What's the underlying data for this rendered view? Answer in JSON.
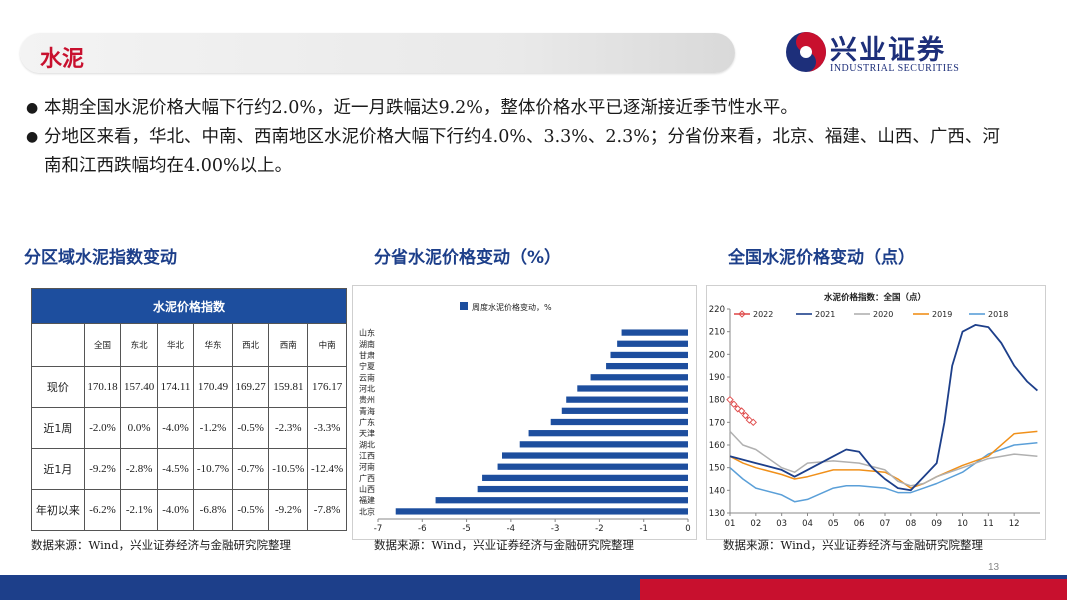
{
  "header": {
    "title": "水泥",
    "logo_cn": "兴业证券",
    "logo_en": "INDUSTRIAL SECURITIES"
  },
  "bullets": [
    "本期全国水泥价格大幅下行约2.0%，近一月跌幅达9.2%，整体价格水平已逐渐接近季节性水平。",
    "分地区来看，华北、中南、西南地区水泥价格大幅下行约4.0%、3.3%、2.3%；分省份来看，北京、福建、山西、广西、河南和江西跌幅均在4.00%以上。"
  ],
  "sections": {
    "left": "分区域水泥指数变动",
    "middle": "分省水泥价格变动（%）",
    "right": "全国水泥价格变动（点）"
  },
  "table": {
    "caption": "水泥价格指数",
    "columns": [
      "全国",
      "东北",
      "华北",
      "华东",
      "西北",
      "西南",
      "中南"
    ],
    "rows": [
      {
        "label": "现价",
        "values": [
          "170.18",
          "157.40",
          "174.11",
          "170.49",
          "169.27",
          "159.81",
          "176.17"
        ]
      },
      {
        "label": "近1周",
        "values": [
          "-2.0%",
          "0.0%",
          "-4.0%",
          "-1.2%",
          "-0.5%",
          "-2.3%",
          "-3.3%"
        ]
      },
      {
        "label": "近1月",
        "values": [
          "-9.2%",
          "-2.8%",
          "-4.5%",
          "-10.7%",
          "-0.7%",
          "-10.5%",
          "-12.4%"
        ]
      },
      {
        "label": "年初以来",
        "values": [
          "-6.2%",
          "-2.1%",
          "-4.0%",
          "-6.8%",
          "-0.5%",
          "-9.2%",
          "-7.8%"
        ]
      }
    ]
  },
  "source": "数据来源：Wind，兴业证券经济与金融研究院整理",
  "page_number": "13",
  "chart_data": [
    {
      "type": "bar",
      "orientation": "horizontal",
      "legend": "周度水泥价格变动，%",
      "categories": [
        "山东",
        "湖南",
        "甘肃",
        "宁夏",
        "云南",
        "河北",
        "贵州",
        "青海",
        "广东",
        "天津",
        "湖北",
        "江西",
        "河南",
        "广西",
        "山西",
        "福建",
        "北京"
      ],
      "values": [
        -1.5,
        -1.6,
        -1.75,
        -1.85,
        -2.2,
        -2.5,
        -2.75,
        -2.85,
        -3.1,
        -3.6,
        -3.8,
        -4.2,
        -4.3,
        -4.65,
        -4.75,
        -5.7,
        -6.6
      ],
      "xlim": [
        -7,
        0
      ],
      "xticks": [
        "-7",
        "-6",
        "-5",
        "-4",
        "-3",
        "-2",
        "-1",
        "0"
      ],
      "color": "#1d4e9e"
    },
    {
      "type": "line",
      "title": "水泥价格指数：全国（点）",
      "x_ticks": [
        "01",
        "02",
        "03",
        "04",
        "05",
        "06",
        "07",
        "08",
        "09",
        "10",
        "11",
        "12"
      ],
      "ylim": [
        130,
        220
      ],
      "y_ticks": [
        "130",
        "140",
        "150",
        "160",
        "170",
        "180",
        "190",
        "200",
        "210",
        "220"
      ],
      "series": [
        {
          "name": "2022",
          "color": "#e05050",
          "marker": "diamond",
          "points": [
            [
              1.0,
              180
            ],
            [
              1.15,
              178
            ],
            [
              1.3,
              176
            ],
            [
              1.45,
              175
            ],
            [
              1.6,
              173
            ],
            [
              1.75,
              171
            ],
            [
              1.9,
              170
            ]
          ]
        },
        {
          "name": "2021",
          "color": "#1d3f8a",
          "points": [
            [
              1.0,
              155
            ],
            [
              2.0,
              152
            ],
            [
              3.0,
              149
            ],
            [
              3.5,
              146
            ],
            [
              4.0,
              149
            ],
            [
              5.0,
              155
            ],
            [
              5.5,
              158
            ],
            [
              6.0,
              157
            ],
            [
              6.5,
              150
            ],
            [
              7.0,
              145
            ],
            [
              7.5,
              141
            ],
            [
              8.0,
              140
            ],
            [
              8.5,
              146
            ],
            [
              9.0,
              152
            ],
            [
              9.3,
              170
            ],
            [
              9.6,
              195
            ],
            [
              10.0,
              210
            ],
            [
              10.5,
              213
            ],
            [
              11.0,
              212
            ],
            [
              11.5,
              205
            ],
            [
              12.0,
              195
            ],
            [
              12.5,
              188
            ],
            [
              12.9,
              184
            ]
          ]
        },
        {
          "name": "2020",
          "color": "#b0b0b0",
          "points": [
            [
              1.0,
              166
            ],
            [
              1.5,
              160
            ],
            [
              2.0,
              158
            ],
            [
              3.0,
              150
            ],
            [
              3.5,
              148
            ],
            [
              4.0,
              152
            ],
            [
              5.0,
              153
            ],
            [
              6.0,
              152
            ],
            [
              7.0,
              149
            ],
            [
              7.5,
              144
            ],
            [
              8.0,
              142
            ],
            [
              8.5,
              143
            ],
            [
              9.0,
              146
            ],
            [
              10.0,
              150
            ],
            [
              11.0,
              154
            ],
            [
              12.0,
              156
            ],
            [
              12.9,
              155
            ]
          ]
        },
        {
          "name": "2019",
          "color": "#f0901a",
          "points": [
            [
              1.0,
              155
            ],
            [
              1.5,
              152
            ],
            [
              2.0,
              150
            ],
            [
              3.0,
              147
            ],
            [
              3.5,
              145
            ],
            [
              4.0,
              146
            ],
            [
              5.0,
              149
            ],
            [
              6.0,
              149
            ],
            [
              7.0,
              148
            ],
            [
              7.5,
              145
            ],
            [
              8.0,
              141
            ],
            [
              8.5,
              143
            ],
            [
              9.0,
              146
            ],
            [
              10.0,
              151
            ],
            [
              11.0,
              155
            ],
            [
              12.0,
              165
            ],
            [
              12.9,
              166
            ]
          ]
        },
        {
          "name": "2018",
          "color": "#5a9fd8",
          "points": [
            [
              1.0,
              150
            ],
            [
              1.5,
              145
            ],
            [
              2.0,
              141
            ],
            [
              3.0,
              138
            ],
            [
              3.5,
              135
            ],
            [
              4.0,
              136
            ],
            [
              5.0,
              141
            ],
            [
              5.5,
              142
            ],
            [
              6.0,
              142
            ],
            [
              7.0,
              141
            ],
            [
              7.5,
              139
            ],
            [
              8.0,
              139
            ],
            [
              8.5,
              141
            ],
            [
              9.0,
              143
            ],
            [
              10.0,
              148
            ],
            [
              11.0,
              156
            ],
            [
              12.0,
              160
            ],
            [
              12.9,
              161
            ]
          ]
        }
      ]
    }
  ]
}
